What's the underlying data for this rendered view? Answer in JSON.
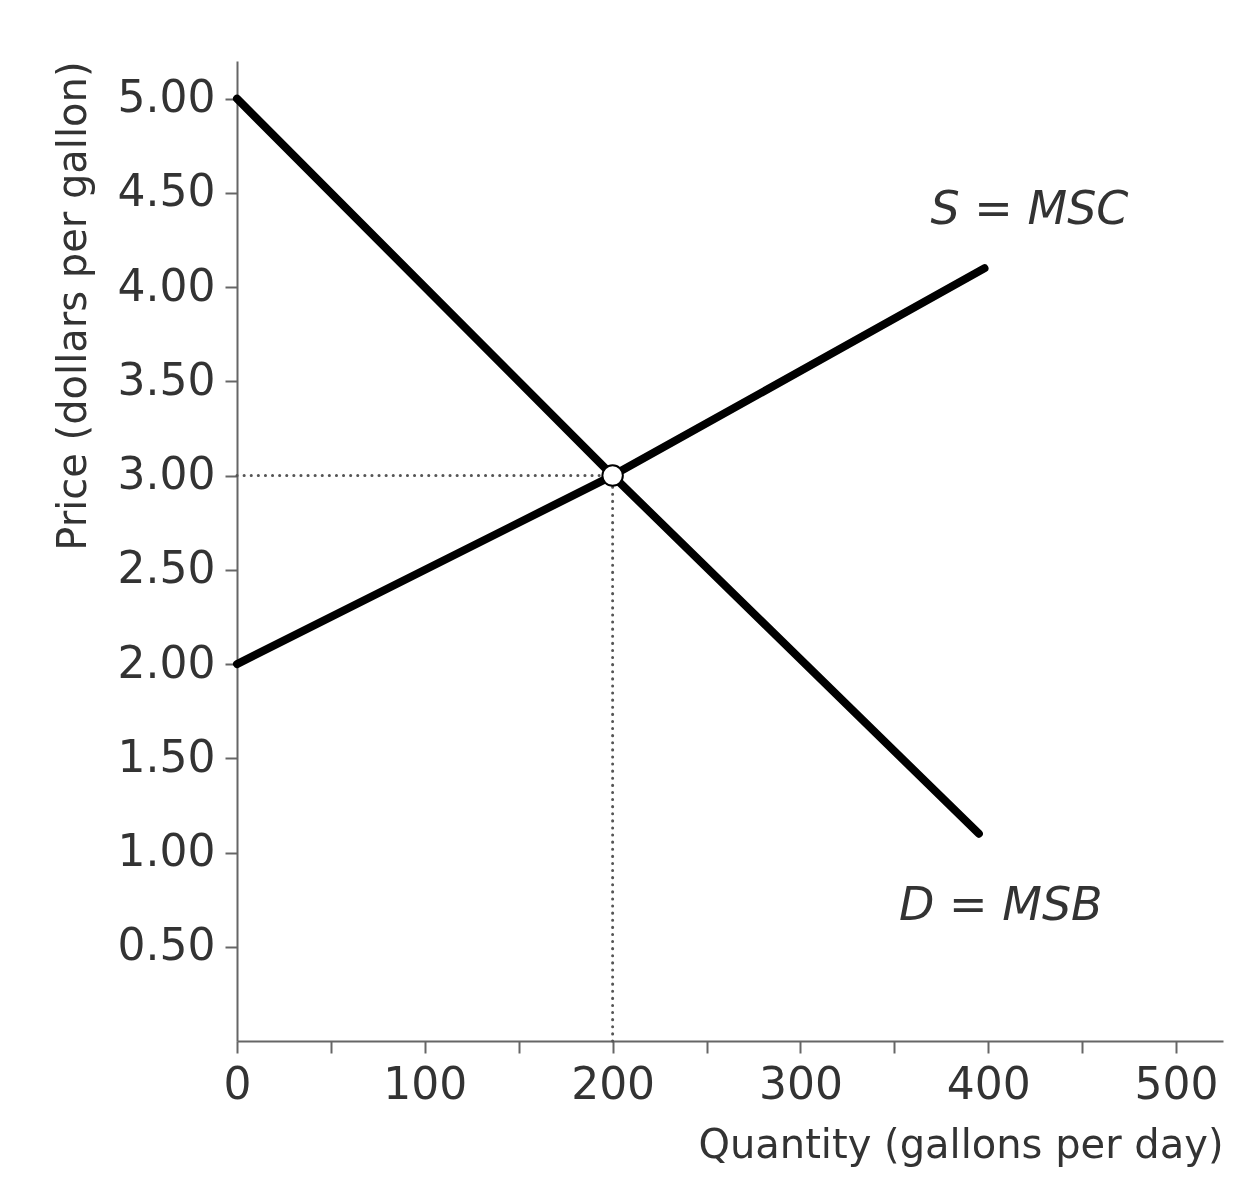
{
  "chart_data": {
    "type": "line",
    "xlabel": "Quantity (gallons per day)",
    "ylabel": "Price (dollars per gallon)",
    "xlim": [
      0,
      525
    ],
    "ylim": [
      0,
      5.2
    ],
    "xticks": [
      0,
      {
        "value": 50,
        "label": null
      },
      100,
      {
        "value": 150,
        "label": null
      },
      200,
      {
        "value": 250,
        "label": null
      },
      300,
      {
        "value": 350,
        "label": null
      },
      400,
      {
        "value": 450,
        "label": null
      },
      500
    ],
    "yticks": [
      {
        "value": 0.5,
        "label": "0.50"
      },
      {
        "value": 1.0,
        "label": "1.00"
      },
      {
        "value": 1.5,
        "label": "1.50"
      },
      {
        "value": 2.0,
        "label": "2.00"
      },
      {
        "value": 2.5,
        "label": "2.50"
      },
      {
        "value": 3.0,
        "label": "3.00"
      },
      {
        "value": 3.5,
        "label": "3.50"
      },
      {
        "value": 4.0,
        "label": "4.00"
      },
      {
        "value": 4.5,
        "label": "4.50"
      },
      {
        "value": 5.0,
        "label": "5.00"
      }
    ],
    "series": [
      {
        "line_style": "dotted",
        "color": "#555555",
        "x": [
          0,
          200
        ],
        "values": [
          3.0,
          3.0
        ]
      },
      {
        "line_style": "dotted",
        "color": "#555555",
        "x": [
          200,
          200
        ],
        "values": [
          0,
          3.0
        ]
      },
      {
        "name": "S = MSC",
        "color": "#000000",
        "x": [
          0,
          200,
          398
        ],
        "values": [
          2.0,
          3.0,
          4.1
        ]
      },
      {
        "name": "D = MSB",
        "color": "#000000",
        "x": [
          0,
          200,
          395
        ],
        "values": [
          5.0,
          3.0,
          1.1
        ]
      },
      {
        "type": "scatter",
        "marker": "circle",
        "color": "#ffffff",
        "x": [
          200
        ],
        "values": [
          3.0
        ]
      }
    ]
  }
}
